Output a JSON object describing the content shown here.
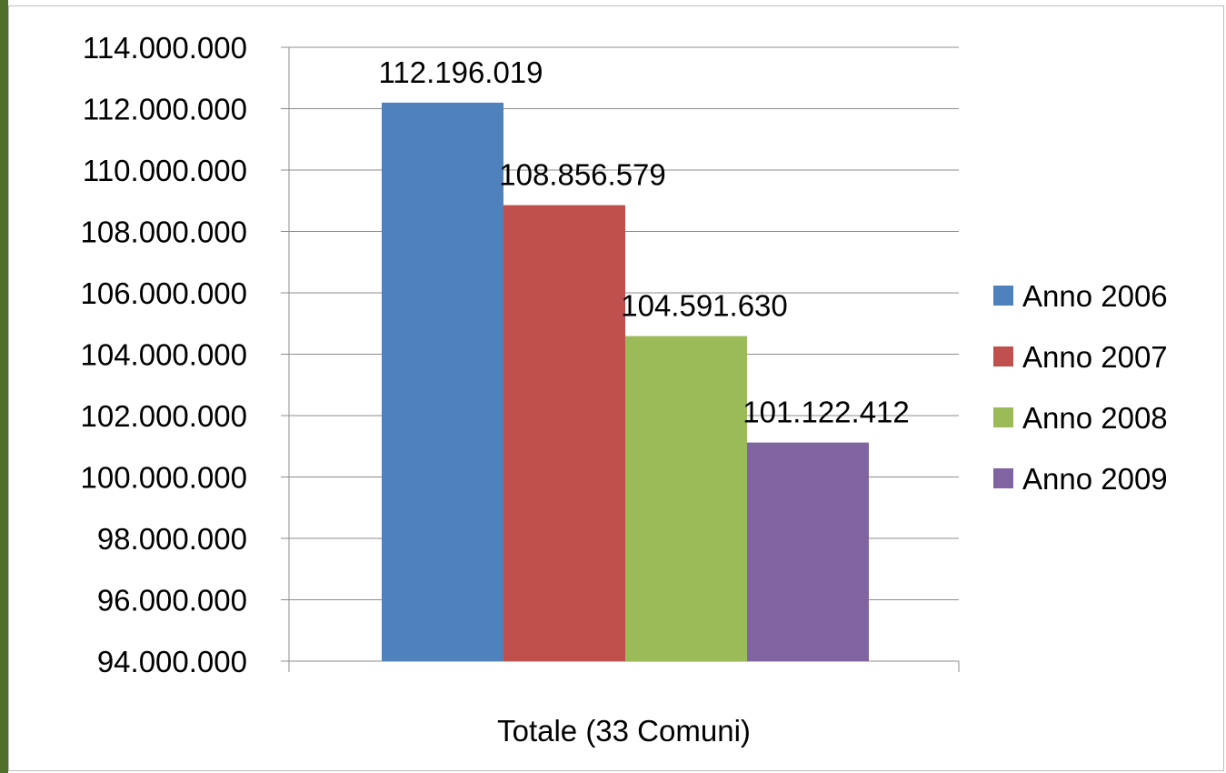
{
  "chart_data": {
    "type": "bar",
    "categories": [
      "Totale (33 Comuni)"
    ],
    "series": [
      {
        "name": "Anno 2006",
        "values": [
          112196019
        ],
        "label": "112.196.019",
        "color": "#4f81bd"
      },
      {
        "name": "Anno 2007",
        "values": [
          108856579
        ],
        "label": "108.856.579",
        "color": "#c0504d"
      },
      {
        "name": "Anno 2008",
        "values": [
          104591630
        ],
        "label": "104.591.630",
        "color": "#9bbb59"
      },
      {
        "name": "Anno 2009",
        "values": [
          101122412
        ],
        "label": "101.122.412",
        "color": "#8064a2"
      }
    ],
    "y_ticks": [
      "94.000.000",
      "96.000.000",
      "98.000.000",
      "100.000.000",
      "102.000.000",
      "104.000.000",
      "106.000.000",
      "108.000.000",
      "110.000.000",
      "112.000.000",
      "114.000.000"
    ],
    "ylim": [
      94000000,
      114000000
    ],
    "grid": true,
    "legend": "right",
    "title": "",
    "xlabel": "",
    "ylabel": ""
  }
}
